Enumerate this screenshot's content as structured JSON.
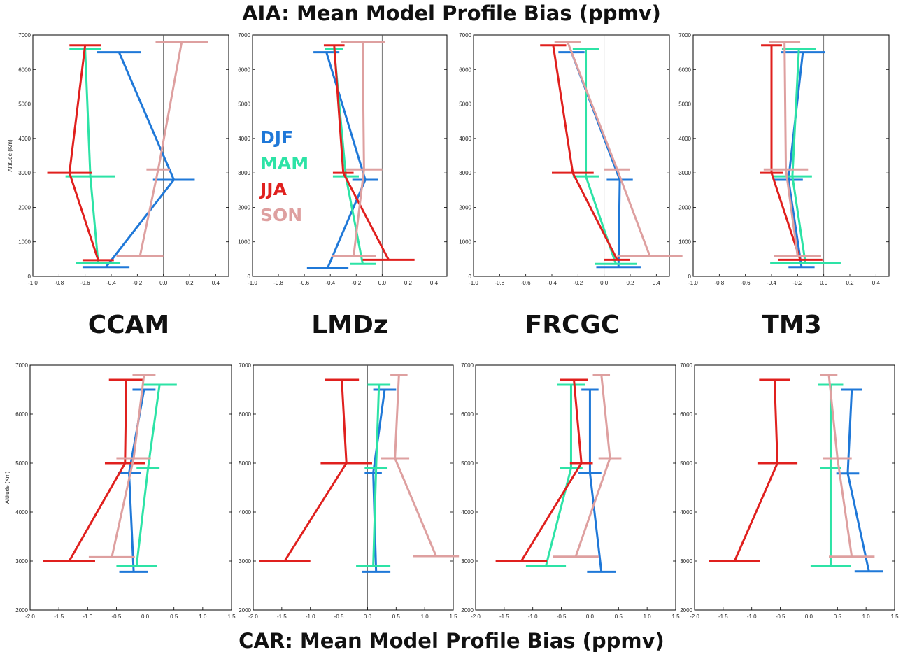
{
  "title_top": "AIA: Mean Model Profile Bias (ppmv)",
  "title_bottom": "CAR: Mean Model Profile Bias (ppmv)",
  "model_labels": [
    "CCAM",
    "LMDz",
    "FRCGC",
    "TM3"
  ],
  "ylabel": "Altitude (Km)",
  "legend": [
    {
      "name": "DJF",
      "color": "#1f78d8"
    },
    {
      "name": "MAM",
      "color": "#2de3a6"
    },
    {
      "name": "JJA",
      "color": "#e0201e"
    },
    {
      "name": "SON",
      "color": "#dea0a0"
    }
  ],
  "colors": {
    "DJF": "#1f78d8",
    "MAM": "#2de3a6",
    "JJA": "#e0201e",
    "SON": "#dea0a0"
  },
  "chart_data": [
    {
      "type": "line",
      "region": "AIA",
      "model": "CCAM",
      "xlim": [
        -1.0,
        0.5
      ],
      "ylim": [
        0,
        7000
      ],
      "xticks": [
        "-1.0",
        "-0.8",
        "-0.6",
        "-0.4",
        "-0.2",
        "0.0",
        "0.2",
        "0.4"
      ],
      "yticks": [
        "0",
        "1000",
        "2000",
        "3000",
        "4000",
        "5000",
        "6000",
        "7000"
      ],
      "ylabel": "Altitude (Km)",
      "series": [
        {
          "name": "DJF",
          "points": [
            [
              -0.44,
              270,
              0.18
            ],
            [
              0.08,
              2800,
              0.16
            ],
            [
              -0.34,
              6500,
              0.17
            ]
          ]
        },
        {
          "name": "MAM",
          "points": [
            [
              -0.5,
              380,
              0.17
            ],
            [
              -0.56,
              2900,
              0.19
            ],
            [
              -0.6,
              6600,
              0.12
            ]
          ]
        },
        {
          "name": "JJA",
          "points": [
            [
              -0.5,
              470,
              0.12
            ],
            [
              -0.72,
              3000,
              0.17
            ],
            [
              -0.6,
              6700,
              0.12
            ]
          ]
        },
        {
          "name": "SON",
          "points": [
            [
              -0.18,
              580,
              0.18
            ],
            [
              -0.04,
              3100,
              0.09
            ],
            [
              0.14,
              6800,
              0.2
            ]
          ]
        }
      ]
    },
    {
      "type": "line",
      "region": "AIA",
      "model": "LMDz",
      "xlim": [
        -1.0,
        0.5
      ],
      "ylim": [
        0,
        7000
      ],
      "xticks": [
        "-1.0",
        "-0.8",
        "-0.6",
        "-0.4",
        "-0.2",
        "0.0",
        "0.2",
        "0.4"
      ],
      "yticks": [
        "0",
        "1000",
        "2000",
        "3000",
        "4000",
        "5000",
        "6000",
        "7000"
      ],
      "series": [
        {
          "name": "DJF",
          "points": [
            [
              -0.42,
              250,
              0.16
            ],
            [
              -0.13,
              2800,
              0.1
            ],
            [
              -0.43,
              6500,
              0.1
            ]
          ]
        },
        {
          "name": "MAM",
          "points": [
            [
              -0.15,
              360,
              0.1
            ],
            [
              -0.28,
              2900,
              0.1
            ],
            [
              -0.37,
              6600,
              0.07
            ]
          ]
        },
        {
          "name": "JJA",
          "points": [
            [
              0.05,
              480,
              0.2
            ],
            [
              -0.3,
              3000,
              0.08
            ],
            [
              -0.37,
              6700,
              0.08
            ]
          ]
        },
        {
          "name": "SON",
          "points": [
            [
              -0.22,
              590,
              0.17
            ],
            [
              -0.14,
              3100,
              0.14
            ],
            [
              -0.15,
              6800,
              0.17
            ]
          ]
        }
      ]
    },
    {
      "type": "line",
      "region": "AIA",
      "model": "FRCGC",
      "xlim": [
        -1.0,
        0.5
      ],
      "ylim": [
        0,
        7000
      ],
      "xticks": [
        "-1.0",
        "-0.8",
        "-0.6",
        "-0.4",
        "-0.2",
        "0.0",
        "0.2",
        "0.4"
      ],
      "yticks": [
        "0",
        "1000",
        "2000",
        "3000",
        "4000",
        "5000",
        "6000",
        "7000"
      ],
      "series": [
        {
          "name": "DJF",
          "points": [
            [
              0.11,
              270,
              0.17
            ],
            [
              0.12,
              2800,
              0.1
            ],
            [
              -0.25,
              6500,
              0.1
            ]
          ]
        },
        {
          "name": "MAM",
          "points": [
            [
              0.09,
              360,
              0.16
            ],
            [
              -0.14,
              2900,
              0.1
            ],
            [
              -0.14,
              6600,
              0.1
            ]
          ]
        },
        {
          "name": "JJA",
          "points": [
            [
              0.1,
              480,
              0.1
            ],
            [
              -0.24,
              3000,
              0.16
            ],
            [
              -0.39,
              6700,
              0.1
            ]
          ]
        },
        {
          "name": "SON",
          "points": [
            [
              0.35,
              590,
              0.25
            ],
            [
              0.1,
              3100,
              0.1
            ],
            [
              -0.28,
              6800,
              0.1
            ]
          ]
        }
      ]
    },
    {
      "type": "line",
      "region": "AIA",
      "model": "TM3",
      "xlim": [
        -1.0,
        0.5
      ],
      "ylim": [
        0,
        7000
      ],
      "xticks": [
        "-1.0",
        "-0.8",
        "-0.6",
        "-0.4",
        "-0.2",
        "0.0",
        "0.2",
        "0.4"
      ],
      "yticks": [
        "0",
        "1000",
        "2000",
        "3000",
        "4000",
        "5000",
        "6000",
        "7000"
      ],
      "series": [
        {
          "name": "DJF",
          "points": [
            [
              -0.17,
              270,
              0.1
            ],
            [
              -0.27,
              2800,
              0.11
            ],
            [
              -0.16,
              6500,
              0.17
            ]
          ]
        },
        {
          "name": "MAM",
          "points": [
            [
              -0.14,
              380,
              0.27
            ],
            [
              -0.24,
              2900,
              0.15
            ],
            [
              -0.19,
              6600,
              0.13
            ]
          ]
        },
        {
          "name": "JJA",
          "points": [
            [
              -0.18,
              480,
              0.17
            ],
            [
              -0.4,
              3000,
              0.09
            ],
            [
              -0.4,
              6700,
              0.08
            ]
          ]
        },
        {
          "name": "SON",
          "points": [
            [
              -0.2,
              590,
              0.18
            ],
            [
              -0.29,
              3100,
              0.17
            ],
            [
              -0.3,
              6800,
              0.12
            ]
          ]
        }
      ]
    },
    {
      "type": "line",
      "region": "CAR",
      "model": "CCAM",
      "xlim": [
        -2.0,
        1.5
      ],
      "ylim": [
        2000,
        7000
      ],
      "xticks": [
        "-2.0",
        "-1.5",
        "-1.0",
        "-0.5",
        "0.0",
        "0.5",
        "1.0",
        "1.5"
      ],
      "yticks": [
        "2000",
        "3000",
        "4000",
        "5000",
        "6000",
        "7000"
      ],
      "ylabel": "Altitude (Km)",
      "series": [
        {
          "name": "DJF",
          "points": [
            [
              -0.2,
              2780,
              0.25
            ],
            [
              -0.28,
              4800,
              0.2
            ],
            [
              -0.02,
              6500,
              0.2
            ]
          ]
        },
        {
          "name": "MAM",
          "points": [
            [
              -0.15,
              2900,
              0.35
            ],
            [
              0.05,
              4900,
              0.2
            ],
            [
              0.25,
              6600,
              0.3
            ]
          ]
        },
        {
          "name": "JJA",
          "points": [
            [
              -1.32,
              3000,
              0.45
            ],
            [
              -0.35,
              5000,
              0.35
            ],
            [
              -0.33,
              6700,
              0.3
            ]
          ]
        },
        {
          "name": "SON",
          "points": [
            [
              -0.58,
              3080,
              0.4
            ],
            [
              -0.2,
              5100,
              0.3
            ],
            [
              -0.02,
              6800,
              0.2
            ]
          ]
        }
      ]
    },
    {
      "type": "line",
      "region": "CAR",
      "model": "LMDz",
      "xlim": [
        -2.0,
        1.5
      ],
      "ylim": [
        2000,
        7000
      ],
      "xticks": [
        "-2.0",
        "-1.5",
        "-1.0",
        "-0.5",
        "0.0",
        "0.5",
        "1.0",
        "1.5"
      ],
      "yticks": [
        "2000",
        "3000",
        "4000",
        "5000",
        "6000",
        "7000"
      ],
      "series": [
        {
          "name": "DJF",
          "points": [
            [
              0.15,
              2780,
              0.25
            ],
            [
              0.1,
              4800,
              0.15
            ],
            [
              0.3,
              6500,
              0.2
            ]
          ]
        },
        {
          "name": "MAM",
          "points": [
            [
              0.1,
              2900,
              0.3
            ],
            [
              0.15,
              4900,
              0.2
            ],
            [
              0.2,
              6600,
              0.2
            ]
          ]
        },
        {
          "name": "JJA",
          "points": [
            [
              -1.45,
              3000,
              0.45
            ],
            [
              -0.37,
              5000,
              0.45
            ],
            [
              -0.45,
              6700,
              0.3
            ]
          ]
        },
        {
          "name": "SON",
          "points": [
            [
              1.2,
              3100,
              0.4
            ],
            [
              0.48,
              5100,
              0.25
            ],
            [
              0.55,
              6800,
              0.15
            ]
          ]
        }
      ]
    },
    {
      "type": "line",
      "region": "CAR",
      "model": "FRCGC",
      "xlim": [
        -2.0,
        1.5
      ],
      "ylim": [
        2000,
        7000
      ],
      "xticks": [
        "-2.0",
        "-1.5",
        "-1.0",
        "-0.5",
        "0.0",
        "0.5",
        "1.0",
        "1.5"
      ],
      "yticks": [
        "2000",
        "3000",
        "4000",
        "5000",
        "6000",
        "7000"
      ],
      "series": [
        {
          "name": "DJF",
          "points": [
            [
              0.2,
              2780,
              0.25
            ],
            [
              0.0,
              4800,
              0.2
            ],
            [
              0.0,
              6500,
              0.15
            ]
          ]
        },
        {
          "name": "MAM",
          "points": [
            [
              -0.77,
              2900,
              0.35
            ],
            [
              -0.33,
              4900,
              0.2
            ],
            [
              -0.33,
              6600,
              0.25
            ]
          ]
        },
        {
          "name": "JJA",
          "points": [
            [
              -1.2,
              3000,
              0.45
            ],
            [
              -0.15,
              5000,
              0.2
            ],
            [
              -0.28,
              6700,
              0.25
            ]
          ]
        },
        {
          "name": "SON",
          "points": [
            [
              -0.25,
              3090,
              0.4
            ],
            [
              0.35,
              5100,
              0.2
            ],
            [
              0.2,
              6800,
              0.15
            ]
          ]
        }
      ]
    },
    {
      "type": "line",
      "region": "CAR",
      "model": "TM3",
      "xlim": [
        -2.0,
        1.5
      ],
      "ylim": [
        2000,
        7000
      ],
      "xticks": [
        "-2.0",
        "-1.5",
        "-1.0",
        "-0.5",
        "0.0",
        "0.5",
        "1.0",
        "1.5"
      ],
      "yticks": [
        "2000",
        "3000",
        "4000",
        "5000",
        "6000",
        "7000"
      ],
      "series": [
        {
          "name": "DJF",
          "points": [
            [
              1.05,
              2790,
              0.25
            ],
            [
              0.68,
              4790,
              0.2
            ],
            [
              0.75,
              6500,
              0.18
            ]
          ]
        },
        {
          "name": "MAM",
          "points": [
            [
              0.38,
              2900,
              0.35
            ],
            [
              0.38,
              4900,
              0.18
            ],
            [
              0.38,
              6600,
              0.22
            ]
          ]
        },
        {
          "name": "JJA",
          "points": [
            [
              -1.3,
              3000,
              0.45
            ],
            [
              -0.55,
              5000,
              0.35
            ],
            [
              -0.6,
              6700,
              0.27
            ]
          ]
        },
        {
          "name": "SON",
          "points": [
            [
              0.75,
              3090,
              0.4
            ],
            [
              0.5,
              5100,
              0.25
            ],
            [
              0.35,
              6800,
              0.15
            ]
          ]
        }
      ]
    }
  ]
}
